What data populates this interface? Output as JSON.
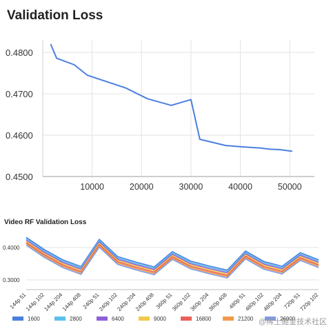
{
  "chart_data": [
    {
      "type": "line",
      "title": "Validation Loss",
      "xlabel": "",
      "ylabel": "",
      "xlim": [
        0,
        55000
      ],
      "ylim": [
        0.45,
        0.483
      ],
      "grid": true,
      "x_ticks": [
        {
          "v": 10000,
          "label": "10000"
        },
        {
          "v": 20000,
          "label": "20000"
        },
        {
          "v": 30000,
          "label": "30000"
        },
        {
          "v": 40000,
          "label": "40000"
        },
        {
          "v": 50000,
          "label": "50000"
        }
      ],
      "y_ticks": [
        {
          "v": 0.45,
          "label": "0.4500"
        },
        {
          "v": 0.46,
          "label": "0.4600"
        },
        {
          "v": 0.47,
          "label": "0.4700"
        },
        {
          "v": 0.48,
          "label": "0.4800"
        }
      ],
      "color": "#4a7fe0",
      "series": [
        {
          "x": [
            1600,
            2800,
            6400,
            9000,
            12000,
            16800,
            21200,
            26000,
            30000,
            31800,
            37000,
            40000,
            44000,
            46000,
            48000,
            50500
          ],
          "values": [
            0.482,
            0.4786,
            0.477,
            0.4745,
            0.4733,
            0.4714,
            0.4688,
            0.4672,
            0.4686,
            0.459,
            0.4575,
            0.4572,
            0.4569,
            0.4566,
            0.4565,
            0.4561
          ]
        }
      ]
    },
    {
      "type": "line",
      "title": "Video RF Validation Loss",
      "ylim": [
        0.27,
        0.44
      ],
      "y_ticks": [
        {
          "v": 0.3,
          "label": "0.3000"
        },
        {
          "v": 0.4,
          "label": "0.4000"
        }
      ],
      "grid": true,
      "legend": "bottom",
      "categories": [
        "144p 51",
        "144p 102",
        "144p 204",
        "144p 408",
        "240p 51",
        "240p 102",
        "240p 204",
        "240p 408",
        "360p 51",
        "360p 102",
        "360p 204",
        "360p 408",
        "480p 51",
        "480p 102",
        "480p 204",
        "720p 51",
        "720p 102"
      ],
      "series": [
        {
          "name": "1600",
          "color": "#4a7fe0",
          "values": [
            0.431,
            0.393,
            0.362,
            0.341,
            0.425,
            0.372,
            0.355,
            0.34,
            0.387,
            0.358,
            0.343,
            0.33,
            0.389,
            0.357,
            0.342,
            0.384,
            0.362
          ]
        },
        {
          "name": "2800",
          "color": "#5bc0eb",
          "values": [
            0.427,
            0.389,
            0.358,
            0.337,
            0.421,
            0.368,
            0.351,
            0.336,
            0.383,
            0.354,
            0.339,
            0.326,
            0.385,
            0.353,
            0.338,
            0.38,
            0.358
          ]
        },
        {
          "name": "6400",
          "color": "#8e5fd8",
          "values": [
            0.423,
            0.385,
            0.354,
            0.333,
            0.417,
            0.364,
            0.347,
            0.332,
            0.379,
            0.35,
            0.335,
            0.322,
            0.381,
            0.349,
            0.334,
            0.376,
            0.354
          ]
        },
        {
          "name": "9000",
          "color": "#f2c94c",
          "values": [
            0.419,
            0.381,
            0.35,
            0.329,
            0.413,
            0.36,
            0.343,
            0.328,
            0.375,
            0.346,
            0.331,
            0.318,
            0.377,
            0.345,
            0.33,
            0.372,
            0.35
          ]
        },
        {
          "name": "16800",
          "color": "#e8615a",
          "values": [
            0.415,
            0.377,
            0.346,
            0.325,
            0.409,
            0.356,
            0.339,
            0.324,
            0.371,
            0.342,
            0.327,
            0.314,
            0.373,
            0.341,
            0.326,
            0.368,
            0.346
          ]
        },
        {
          "name": "21200",
          "color": "#f2994a",
          "values": [
            0.411,
            0.373,
            0.342,
            0.321,
            0.405,
            0.352,
            0.335,
            0.32,
            0.367,
            0.338,
            0.323,
            0.31,
            0.369,
            0.337,
            0.322,
            0.364,
            0.342
          ]
        },
        {
          "name": "26000",
          "color": "#7b9ce8",
          "values": [
            0.407,
            0.369,
            0.338,
            0.317,
            0.401,
            0.348,
            0.331,
            0.316,
            0.363,
            0.334,
            0.319,
            0.306,
            0.365,
            0.333,
            0.318,
            0.36,
            0.338
          ]
        }
      ]
    }
  ],
  "watermark": "@稀土掘金技术社区"
}
